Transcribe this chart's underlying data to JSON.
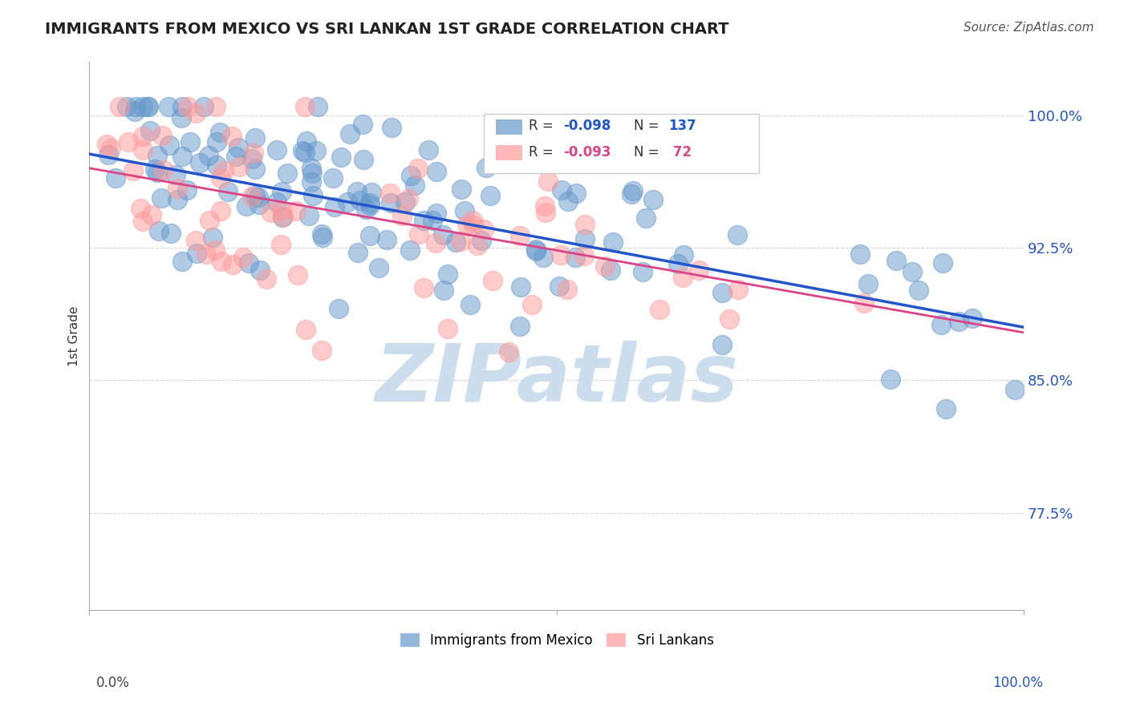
{
  "title": "IMMIGRANTS FROM MEXICO VS SRI LANKAN 1ST GRADE CORRELATION CHART",
  "source": "Source: ZipAtlas.com",
  "ylabel": "1st Grade",
  "legend_blue_label": "Immigrants from Mexico",
  "legend_pink_label": "Sri Lankans",
  "ytick_labels": [
    "77.5%",
    "85.0%",
    "92.5%",
    "100.0%"
  ],
  "ytick_values": [
    0.775,
    0.85,
    0.925,
    1.0
  ],
  "xlim": [
    0.0,
    1.0
  ],
  "ylim": [
    0.72,
    1.03
  ],
  "blue_color": "#6699cc",
  "pink_color": "#ff9999",
  "trendline_blue": "#2255cc",
  "trendline_pink": "#dd4488",
  "background_color": "#ffffff",
  "watermark_text": "ZIPatlas",
  "watermark_color": "#ccddee",
  "blue_slope": -0.098,
  "pink_slope": -0.093,
  "blue_intercept": 0.978,
  "pink_intercept": 0.97,
  "seed": 42,
  "n_blue": 137,
  "n_pink": 72
}
